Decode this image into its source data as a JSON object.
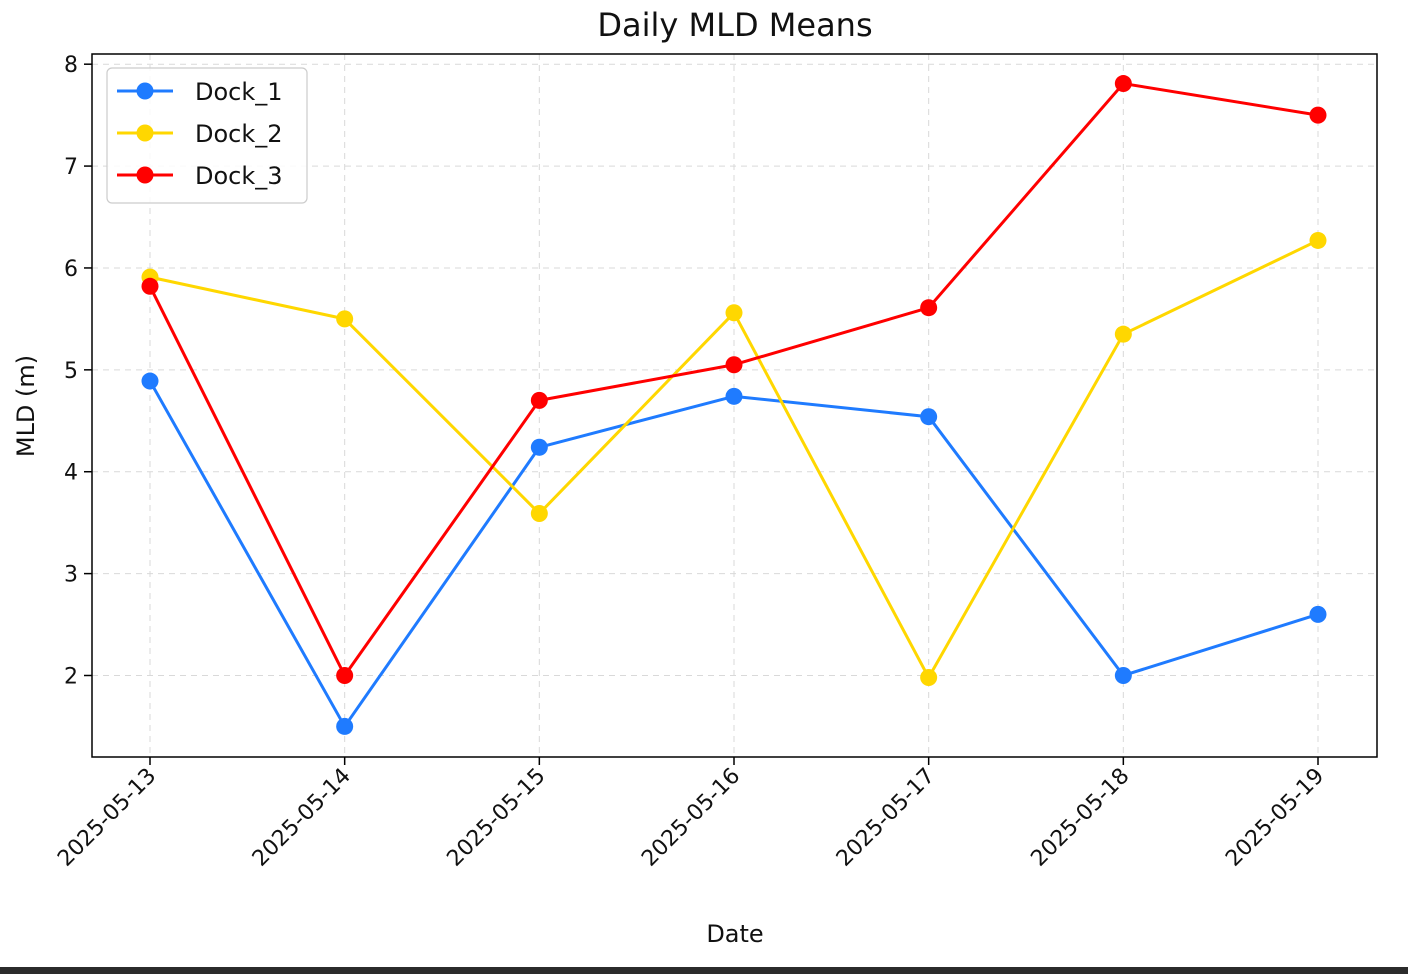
{
  "chart_data": {
    "type": "line",
    "title": "Daily MLD Means",
    "xlabel": "Date",
    "ylabel": "MLD (m)",
    "categories": [
      "2025-05-13",
      "2025-05-14",
      "2025-05-15",
      "2025-05-16",
      "2025-05-17",
      "2025-05-18",
      "2025-05-19"
    ],
    "ylim": [
      1.2,
      8.1
    ],
    "yticks": [
      2,
      3,
      4,
      5,
      6,
      7,
      8
    ],
    "grid": true,
    "legend_position": "top-left",
    "series": [
      {
        "name": "Dock_1",
        "color": "#1f7bff",
        "values": [
          4.89,
          1.5,
          4.24,
          4.74,
          4.54,
          2.0,
          2.6
        ]
      },
      {
        "name": "Dock_2",
        "color": "#ffd700",
        "values": [
          5.91,
          5.5,
          3.59,
          5.56,
          1.98,
          5.35,
          6.27
        ]
      },
      {
        "name": "Dock_3",
        "color": "#ff0000",
        "values": [
          5.82,
          2.0,
          4.7,
          5.05,
          5.61,
          7.81,
          7.5
        ]
      }
    ]
  }
}
